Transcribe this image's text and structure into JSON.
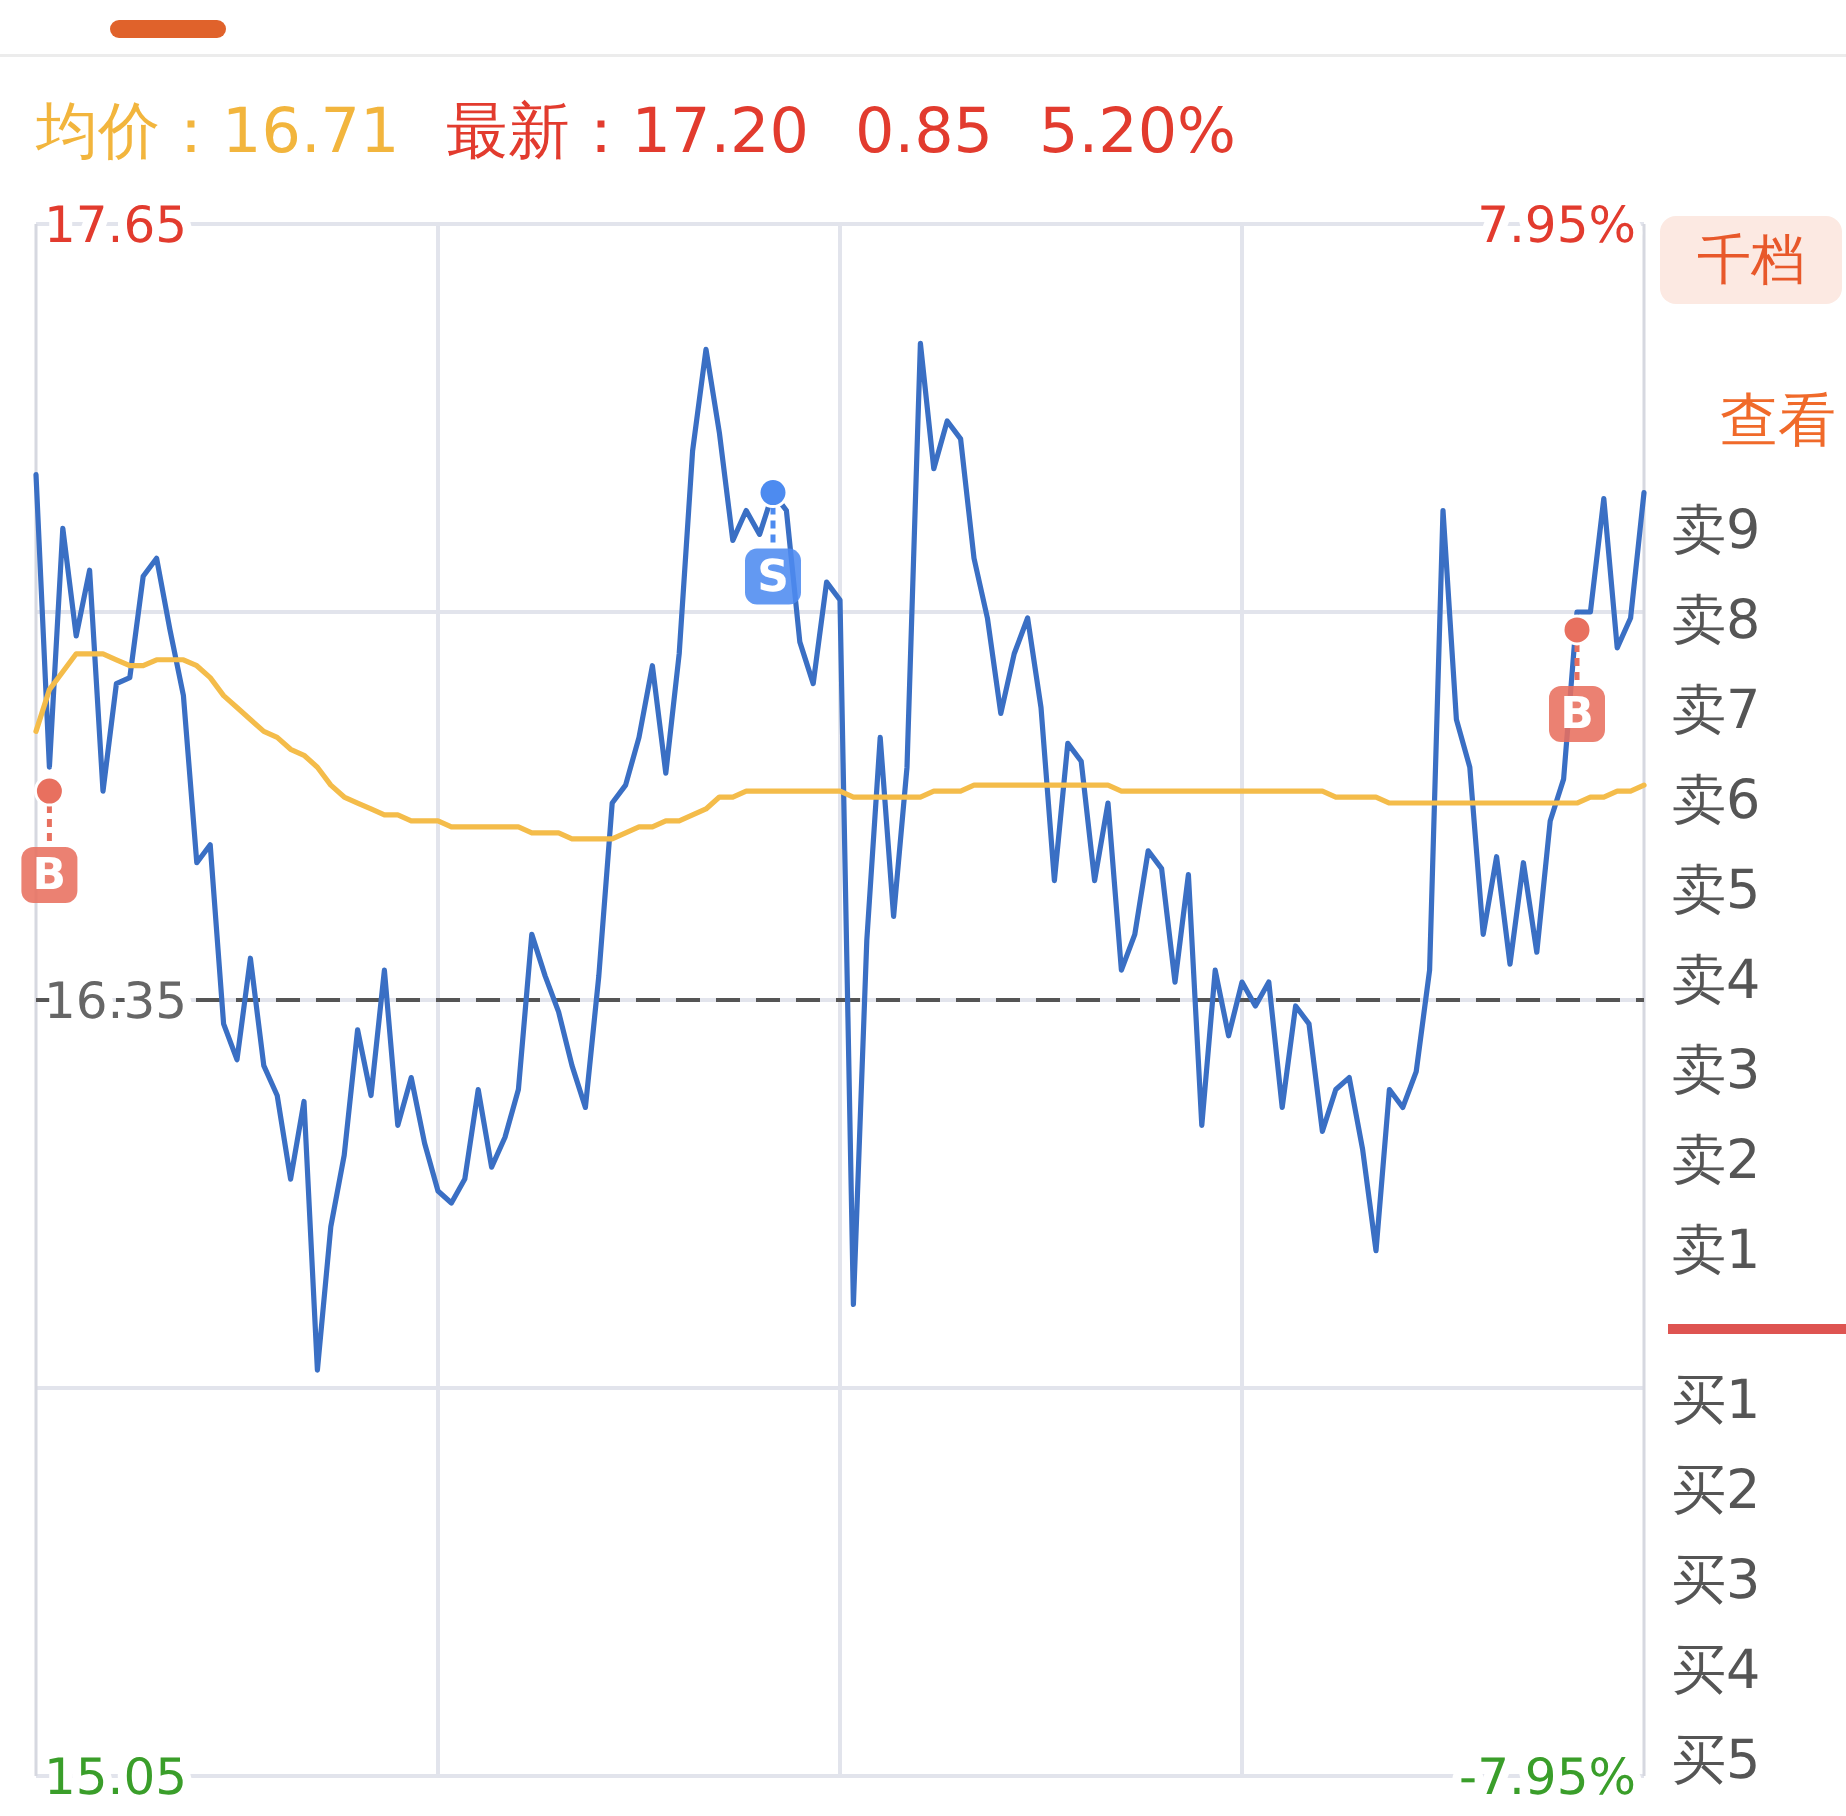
{
  "chart_data": [
    {
      "type": "line",
      "annotations": [
        "均价：16.71",
        "最新：17.20",
        "0.85",
        "5.20%"
      ],
      "categories": [
        null,
        null,
        null,
        null,
        null,
        null,
        null,
        null,
        null,
        null,
        null,
        null,
        null,
        null,
        null,
        null,
        null,
        null,
        null,
        null,
        null,
        null,
        null,
        null,
        null,
        null,
        null,
        null,
        null,
        null,
        null,
        null,
        null,
        null,
        null,
        null,
        null,
        null,
        null,
        null,
        null,
        null,
        null,
        null,
        null,
        null,
        null,
        null,
        null,
        null,
        null,
        null,
        null,
        null,
        null,
        null,
        null,
        null,
        null,
        null,
        null,
        null,
        null,
        null,
        null,
        null,
        null,
        null,
        null,
        null,
        null,
        null,
        null,
        null,
        null,
        null,
        null,
        null,
        null,
        null,
        null,
        null,
        null,
        null,
        null,
        null,
        null,
        null,
        null,
        null,
        null,
        null,
        null,
        null,
        null,
        null,
        null,
        null,
        null,
        null,
        null,
        null,
        null,
        null,
        null,
        null,
        null,
        null,
        null,
        null,
        null,
        null,
        null,
        null,
        null,
        null,
        null,
        null,
        null,
        null,
        null
      ],
      "ylim": [
        15.05,
        17.65
      ],
      "yticks": [
        15.05,
        {
          "value": 15.7,
          "label": null
        },
        16.35,
        {
          "value": 17.0,
          "label": null
        },
        17.65
      ],
      "y2lim": [
        -7.95,
        7.95
      ],
      "y2ticks": [
        {
          "value": -7.95,
          "label": "-7.95%"
        },
        {
          "value": 7.95,
          "label": "7.95%"
        }
      ],
      "grid": true,
      "ref_lines": [
        {
          "axis": "y",
          "value": 16.35,
          "color": "#555555",
          "line_style": "dashed"
        }
      ],
      "series": [
        {
          "color": "#3a6fc4",
          "values": [
            17.23,
            16.74,
            17.14,
            16.96,
            17.07,
            16.7,
            16.88,
            16.89,
            17.06,
            17.09,
            16.97,
            16.86,
            16.58,
            16.61,
            16.31,
            16.25,
            16.42,
            16.24,
            16.19,
            16.05,
            16.18,
            15.73,
            15.97,
            16.09,
            16.3,
            16.19,
            16.4,
            16.14,
            16.22,
            16.11,
            16.03,
            16.01,
            16.05,
            16.2,
            16.07,
            16.12,
            16.2,
            16.46,
            16.39,
            16.33,
            16.24,
            16.17,
            16.39,
            16.68,
            16.71,
            16.79,
            16.91,
            16.73,
            16.93,
            17.27,
            17.44,
            17.3,
            17.12,
            17.17,
            17.13,
            17.2,
            17.17,
            16.95,
            16.88,
            17.05,
            17.02,
            15.84,
            16.45,
            16.79,
            16.49,
            16.74,
            17.45,
            17.24,
            17.32,
            17.29,
            17.09,
            16.99,
            16.83,
            16.93,
            16.99,
            16.84,
            16.55,
            16.78,
            16.75,
            16.55,
            16.68,
            16.4,
            16.46,
            16.6,
            16.57,
            16.38,
            16.56,
            16.14,
            16.4,
            16.29,
            16.38,
            16.34,
            16.38,
            16.17,
            16.34,
            16.31,
            16.13,
            16.2,
            16.22,
            16.1,
            15.93,
            16.2,
            16.17,
            16.23,
            16.4,
            17.17,
            16.82,
            16.74,
            16.46,
            16.59,
            16.41,
            16.58,
            16.43,
            16.65,
            16.72,
            17.0,
            17.0,
            17.19,
            16.94,
            16.99,
            17.2
          ]
        },
        {
          "color": "#f4bc4a",
          "values": [
            16.8,
            16.87,
            16.9,
            16.93,
            16.93,
            16.93,
            16.92,
            16.91,
            16.91,
            16.92,
            16.92,
            16.92,
            16.91,
            16.89,
            16.86,
            16.84,
            16.82,
            16.8,
            16.79,
            16.77,
            16.76,
            16.74,
            16.71,
            16.69,
            16.68,
            16.67,
            16.66,
            16.66,
            16.65,
            16.65,
            16.65,
            16.64,
            16.64,
            16.64,
            16.64,
            16.64,
            16.64,
            16.63,
            16.63,
            16.63,
            16.62,
            16.62,
            16.62,
            16.62,
            16.63,
            16.64,
            16.64,
            16.65,
            16.65,
            16.66,
            16.67,
            16.69,
            16.69,
            16.7,
            16.7,
            16.7,
            16.7,
            16.7,
            16.7,
            16.7,
            16.7,
            16.69,
            16.69,
            16.69,
            16.69,
            16.69,
            16.69,
            16.7,
            16.7,
            16.7,
            16.71,
            16.71,
            16.71,
            16.71,
            16.71,
            16.71,
            16.71,
            16.71,
            16.71,
            16.71,
            16.71,
            16.7,
            16.7,
            16.7,
            16.7,
            16.7,
            16.7,
            16.7,
            16.7,
            16.7,
            16.7,
            16.7,
            16.7,
            16.7,
            16.7,
            16.7,
            16.7,
            16.69,
            16.69,
            16.69,
            16.69,
            16.68,
            16.68,
            16.68,
            16.68,
            16.68,
            16.68,
            16.68,
            16.68,
            16.68,
            16.68,
            16.68,
            16.68,
            16.68,
            16.68,
            16.68,
            16.69,
            16.69,
            16.7,
            16.7,
            16.71
          ]
        },
        {
          "type": "scatter",
          "color": "#e8705f",
          "values": [
            null,
            16.7,
            null,
            null,
            null,
            null,
            null,
            null,
            null,
            null,
            null,
            null,
            null,
            null,
            null,
            null,
            null,
            null,
            null,
            null,
            null,
            null,
            null,
            null,
            null,
            null,
            null,
            null,
            null,
            null,
            null,
            null,
            null,
            null,
            null,
            null,
            null,
            null,
            null,
            null,
            null,
            null,
            null,
            null,
            null,
            null,
            null,
            null,
            null,
            null,
            null,
            null,
            null,
            null,
            null,
            null,
            null,
            null,
            null,
            null,
            null,
            null,
            null,
            null,
            null,
            null,
            null,
            null,
            null,
            null,
            null,
            null,
            null,
            null,
            null,
            null,
            null,
            null,
            null,
            null,
            null,
            null,
            null,
            null,
            null,
            null,
            null,
            null,
            null,
            null,
            null,
            null,
            null,
            null,
            null,
            null,
            null,
            null,
            null,
            null,
            null,
            null,
            null,
            null,
            null,
            null,
            null,
            null,
            null,
            null,
            null,
            null,
            null,
            null,
            null,
            16.97,
            null,
            null,
            null,
            null,
            null
          ],
          "value_labels": [
            null,
            "B",
            null,
            null,
            null,
            null,
            null,
            null,
            null,
            null,
            null,
            null,
            null,
            null,
            null,
            null,
            null,
            null,
            null,
            null,
            null,
            null,
            null,
            null,
            null,
            null,
            null,
            null,
            null,
            null,
            null,
            null,
            null,
            null,
            null,
            null,
            null,
            null,
            null,
            null,
            null,
            null,
            null,
            null,
            null,
            null,
            null,
            null,
            null,
            null,
            null,
            null,
            null,
            null,
            null,
            null,
            null,
            null,
            null,
            null,
            null,
            null,
            null,
            null,
            null,
            null,
            null,
            null,
            null,
            null,
            null,
            null,
            null,
            null,
            null,
            null,
            null,
            null,
            null,
            null,
            null,
            null,
            null,
            null,
            null,
            null,
            null,
            null,
            null,
            null,
            null,
            null,
            null,
            null,
            null,
            null,
            null,
            null,
            null,
            null,
            null,
            null,
            null,
            null,
            null,
            null,
            null,
            null,
            null,
            null,
            null,
            null,
            null,
            null,
            null,
            "B",
            null,
            null,
            null,
            null,
            null
          ]
        },
        {
          "type": "scatter",
          "color": "#4d8bf0",
          "values": [
            null,
            null,
            null,
            null,
            null,
            null,
            null,
            null,
            null,
            null,
            null,
            null,
            null,
            null,
            null,
            null,
            null,
            null,
            null,
            null,
            null,
            null,
            null,
            null,
            null,
            null,
            null,
            null,
            null,
            null,
            null,
            null,
            null,
            null,
            null,
            null,
            null,
            null,
            null,
            null,
            null,
            null,
            null,
            null,
            null,
            null,
            null,
            null,
            null,
            null,
            null,
            null,
            null,
            null,
            null,
            17.2,
            null,
            null,
            null,
            null,
            null,
            null,
            null,
            null,
            null,
            null,
            null,
            null,
            null,
            null,
            null,
            null,
            null,
            null,
            null,
            null,
            null,
            null,
            null,
            null,
            null,
            null,
            null,
            null,
            null,
            null,
            null,
            null,
            null,
            null,
            null,
            null,
            null,
            null,
            null,
            null,
            null,
            null,
            null,
            null,
            null,
            null,
            null,
            null,
            null,
            null,
            null,
            null,
            null,
            null,
            null,
            null,
            null,
            null,
            null,
            null,
            null,
            null,
            null,
            null,
            null
          ],
          "value_labels": [
            null,
            null,
            null,
            null,
            null,
            null,
            null,
            null,
            null,
            null,
            null,
            null,
            null,
            null,
            null,
            null,
            null,
            null,
            null,
            null,
            null,
            null,
            null,
            null,
            null,
            null,
            null,
            null,
            null,
            null,
            null,
            null,
            null,
            null,
            null,
            null,
            null,
            null,
            null,
            null,
            null,
            null,
            null,
            null,
            null,
            null,
            null,
            null,
            null,
            null,
            null,
            null,
            null,
            null,
            null,
            "S",
            null,
            null,
            null,
            null,
            null,
            null,
            null,
            null,
            null,
            null,
            null,
            null,
            null,
            null,
            null,
            null,
            null,
            null,
            null,
            null,
            null,
            null,
            null,
            null,
            null,
            null,
            null,
            null,
            null,
            null,
            null,
            null,
            null,
            null,
            null,
            null,
            null,
            null,
            null,
            null,
            null,
            null,
            null,
            null,
            null,
            null,
            null,
            null,
            null,
            null,
            null,
            null,
            null,
            null,
            null,
            null,
            null,
            null,
            null,
            null,
            null,
            null,
            null,
            null,
            null
          ]
        }
      ]
    },
    {
      "type": "other",
      "annotations": [
        "千档",
        "查看"
      ],
      "categories": [
        "卖9",
        "卖8",
        "卖7",
        "卖6",
        "卖5",
        "卖4",
        "卖3",
        "卖2",
        "卖1"
      ]
    },
    {
      "type": "other",
      "categories": [
        "买1",
        "买2",
        "买3",
        "买4",
        "买5"
      ]
    }
  ]
}
